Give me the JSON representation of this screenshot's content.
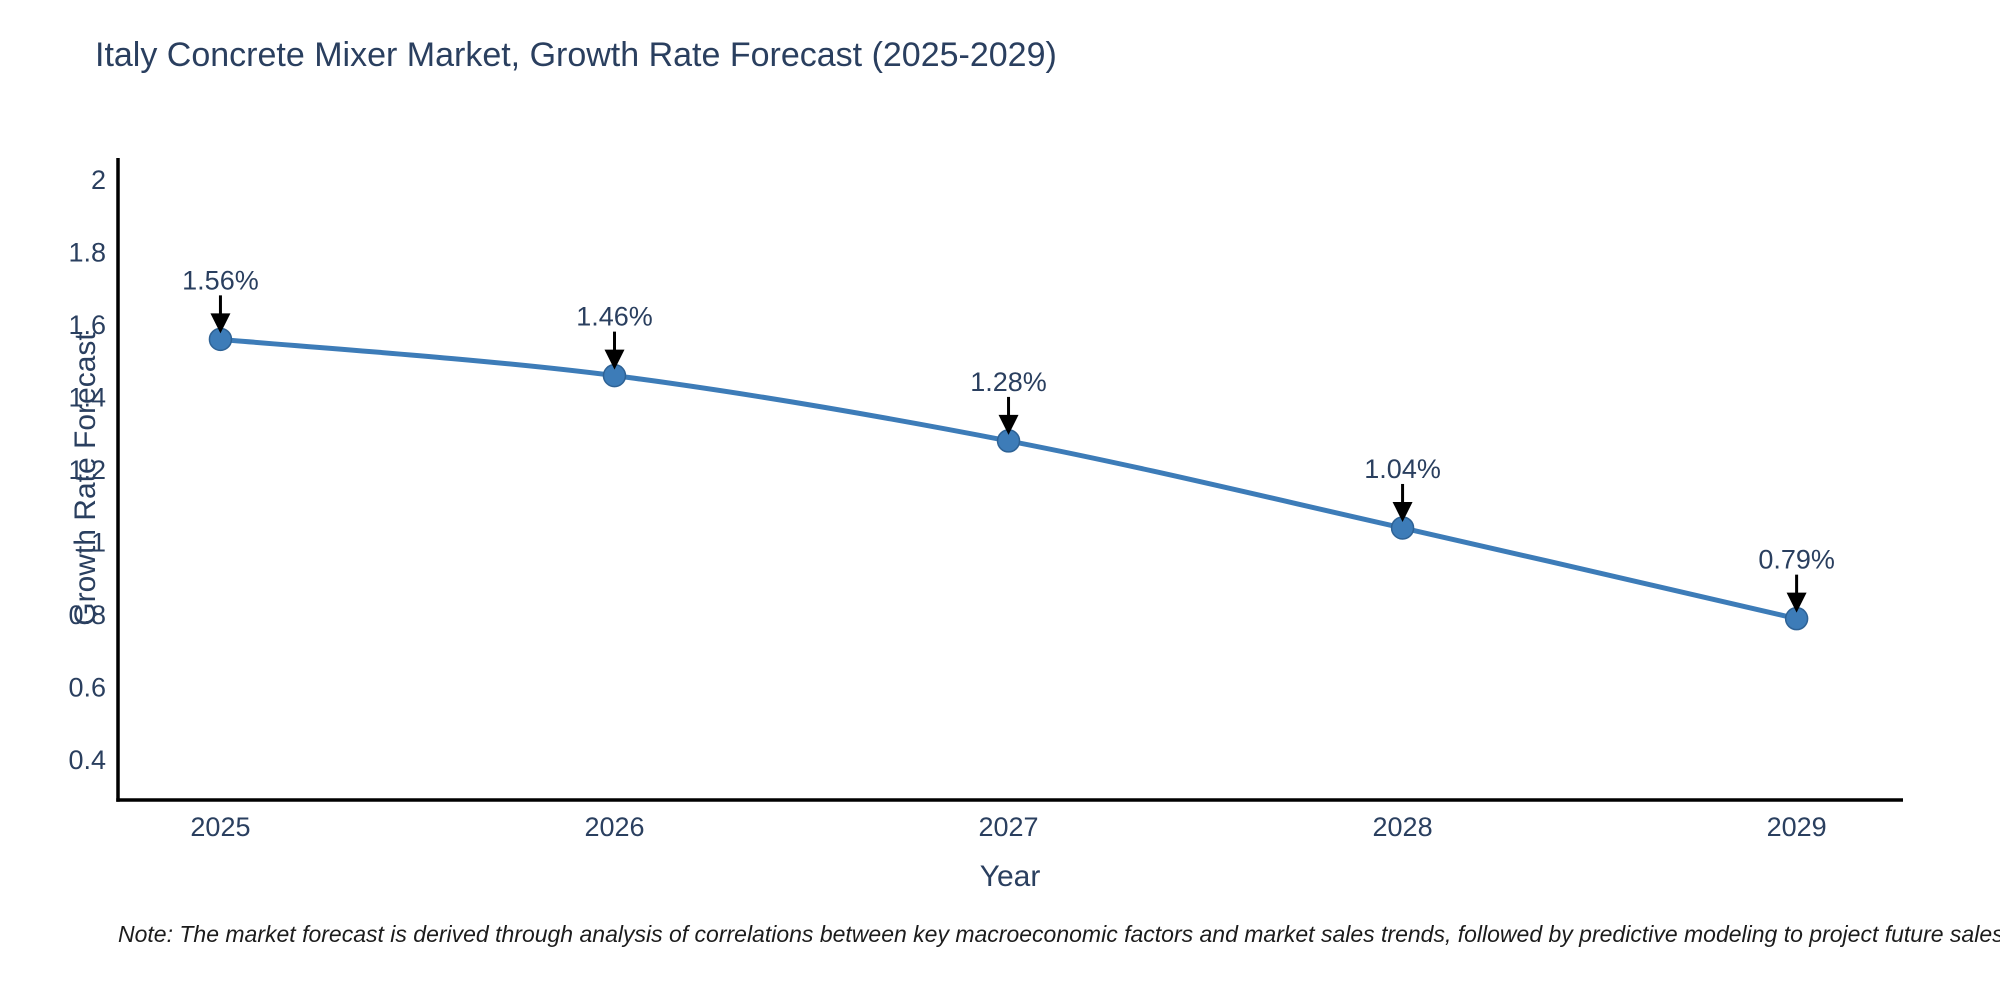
{
  "chart_data": {
    "type": "line",
    "title": "Italy Concrete Mixer Market, Growth Rate Forecast (2025-2029)",
    "xlabel": "Year",
    "ylabel": "Growth Rate Forecast",
    "x": [
      2025,
      2026,
      2027,
      2028,
      2029
    ],
    "values": [
      1.56,
      1.46,
      1.28,
      1.04,
      0.79
    ],
    "point_labels": [
      "1.56%",
      "1.46%",
      "1.28%",
      "1.04%",
      "0.79%"
    ],
    "xticks": [
      2025,
      2026,
      2027,
      2028,
      2029
    ],
    "yticks": [
      0.4,
      0.6,
      0.8,
      1,
      1.2,
      1.4,
      1.6,
      1.8,
      2
    ],
    "xlim": [
      2024.74,
      2029.27
    ],
    "ylim": [
      0.29,
      2.06
    ],
    "grid": false,
    "legend": null,
    "annotation_style": "percentage label with black down-arrow above each marker",
    "note": "Note: The market forecast is derived through analysis of correlations between key macroeconomic factors and market sales trends, followed by predictive modeling to project future sales",
    "colors": {
      "line": "#3d7cb8",
      "marker": "#3d7cb8",
      "marker_edge": "#2e6295",
      "text": "#2a3f5f",
      "axis": "#000000",
      "arrow": "#000000",
      "note_text": "#1c1c1c",
      "background": "#ffffff"
    }
  }
}
